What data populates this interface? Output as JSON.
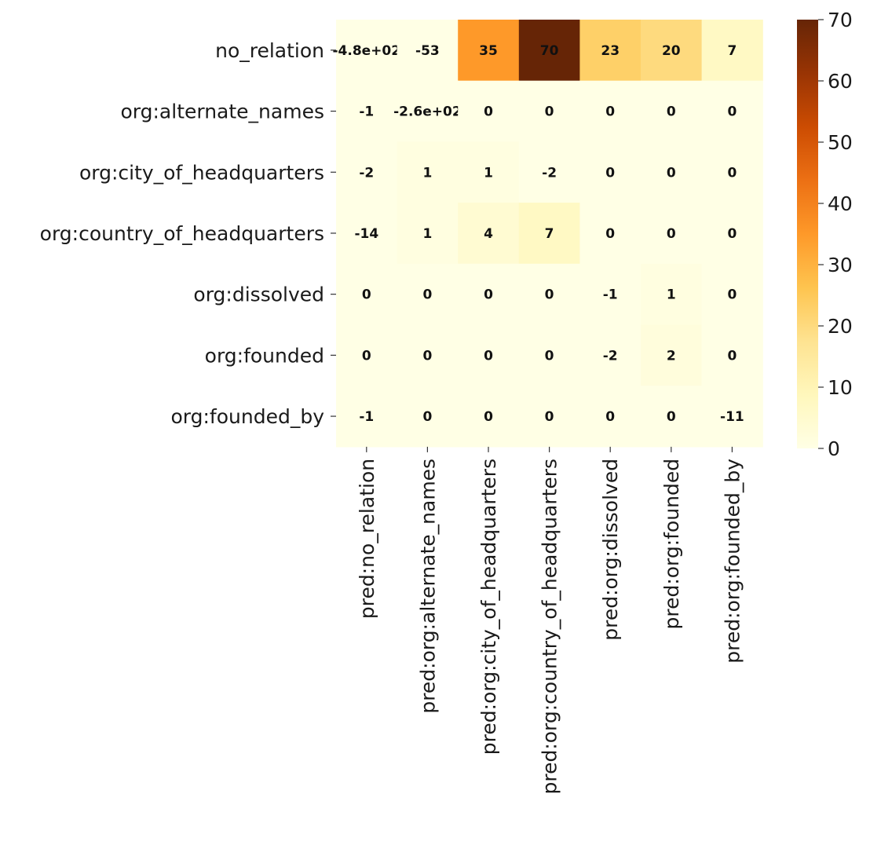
{
  "chart_data": {
    "type": "heatmap",
    "rows": [
      "no_relation",
      "org:alternate_names",
      "org:city_of_headquarters",
      "org:country_of_headquarters",
      "org:dissolved",
      "org:founded",
      "org:founded_by"
    ],
    "columns": [
      "pred:no_relation",
      "pred:org:alternate_names",
      "pred:org:city_of_headquarters",
      "pred:org:country_of_headquarters",
      "pred:org:dissolved",
      "pred:org:founded",
      "pred:org:founded_by"
    ],
    "values": [
      [
        -480,
        -53,
        35,
        70,
        23,
        20,
        7
      ],
      [
        -1,
        -260,
        0,
        0,
        0,
        0,
        0
      ],
      [
        -2,
        1,
        1,
        -2,
        0,
        0,
        0
      ],
      [
        -14,
        1,
        4,
        7,
        0,
        0,
        0
      ],
      [
        0,
        0,
        0,
        0,
        -1,
        1,
        0
      ],
      [
        0,
        0,
        0,
        0,
        -2,
        2,
        0
      ],
      [
        -1,
        0,
        0,
        0,
        0,
        0,
        -11
      ]
    ],
    "labels": [
      [
        "-4.8e+02",
        "-53",
        "35",
        "70",
        "23",
        "20",
        "7"
      ],
      [
        "-1",
        "-2.6e+02",
        "0",
        "0",
        "0",
        "0",
        "0"
      ],
      [
        "-2",
        "1",
        "1",
        "-2",
        "0",
        "0",
        "0"
      ],
      [
        "-14",
        "1",
        "4",
        "7",
        "0",
        "0",
        "0"
      ],
      [
        "0",
        "0",
        "0",
        "0",
        "-1",
        "1",
        "0"
      ],
      [
        "0",
        "0",
        "0",
        "0",
        "-2",
        "2",
        "0"
      ],
      [
        "-1",
        "0",
        "0",
        "0",
        "0",
        "0",
        "-11"
      ]
    ],
    "colorbar": {
      "vmin": 0,
      "vmax": 70,
      "ticks": [
        "0",
        "10",
        "20",
        "30",
        "40",
        "50",
        "60",
        "70"
      ],
      "colormap": "YlOrBr",
      "colors": [
        "#ffffe5",
        "#fff7bc",
        "#fee391",
        "#fec44f",
        "#fe9929",
        "#ec7014",
        "#cc4c02",
        "#993404",
        "#662506"
      ]
    },
    "annotation_color": "#111111"
  }
}
